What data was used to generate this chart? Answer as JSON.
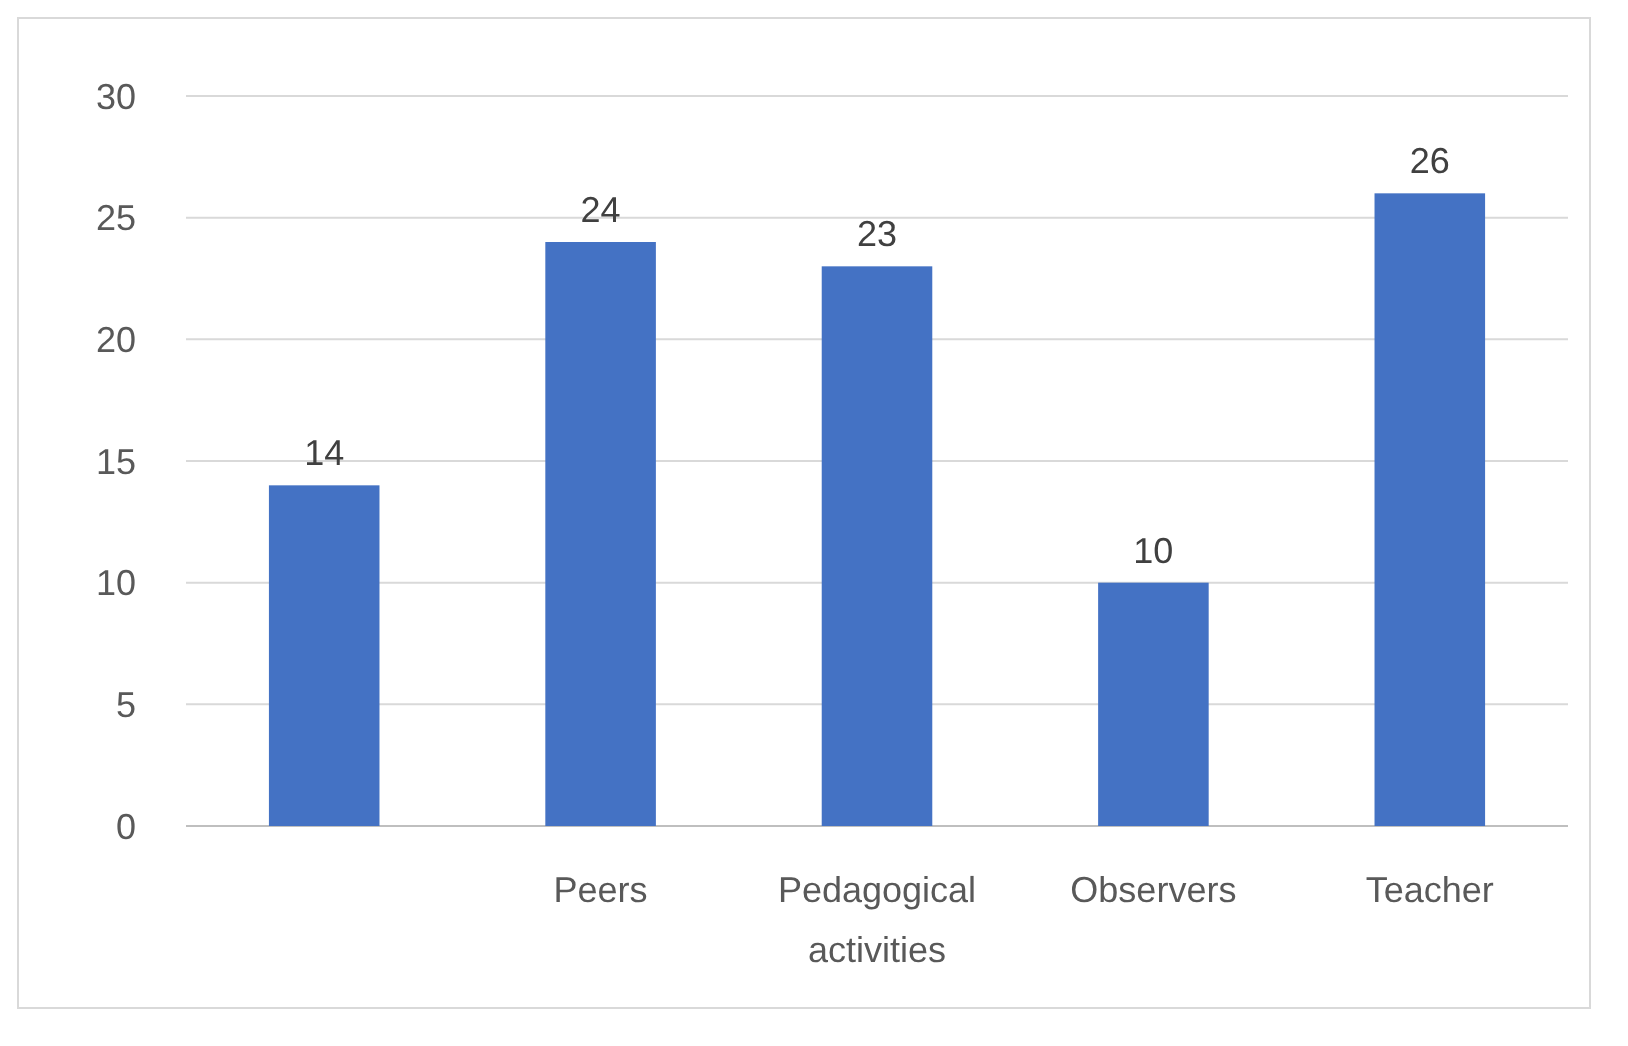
{
  "chart_data": {
    "type": "bar",
    "categories": [
      null,
      "Peers",
      "Pedagogical activities",
      "Observers",
      "Teacher"
    ],
    "values": [
      14,
      24,
      23,
      10,
      26
    ],
    "color": "#4472c4",
    "ylim": [
      0,
      30
    ],
    "yticks": [
      0,
      5,
      10,
      15,
      20,
      25,
      30
    ],
    "grid": "y",
    "data_labels": true
  }
}
